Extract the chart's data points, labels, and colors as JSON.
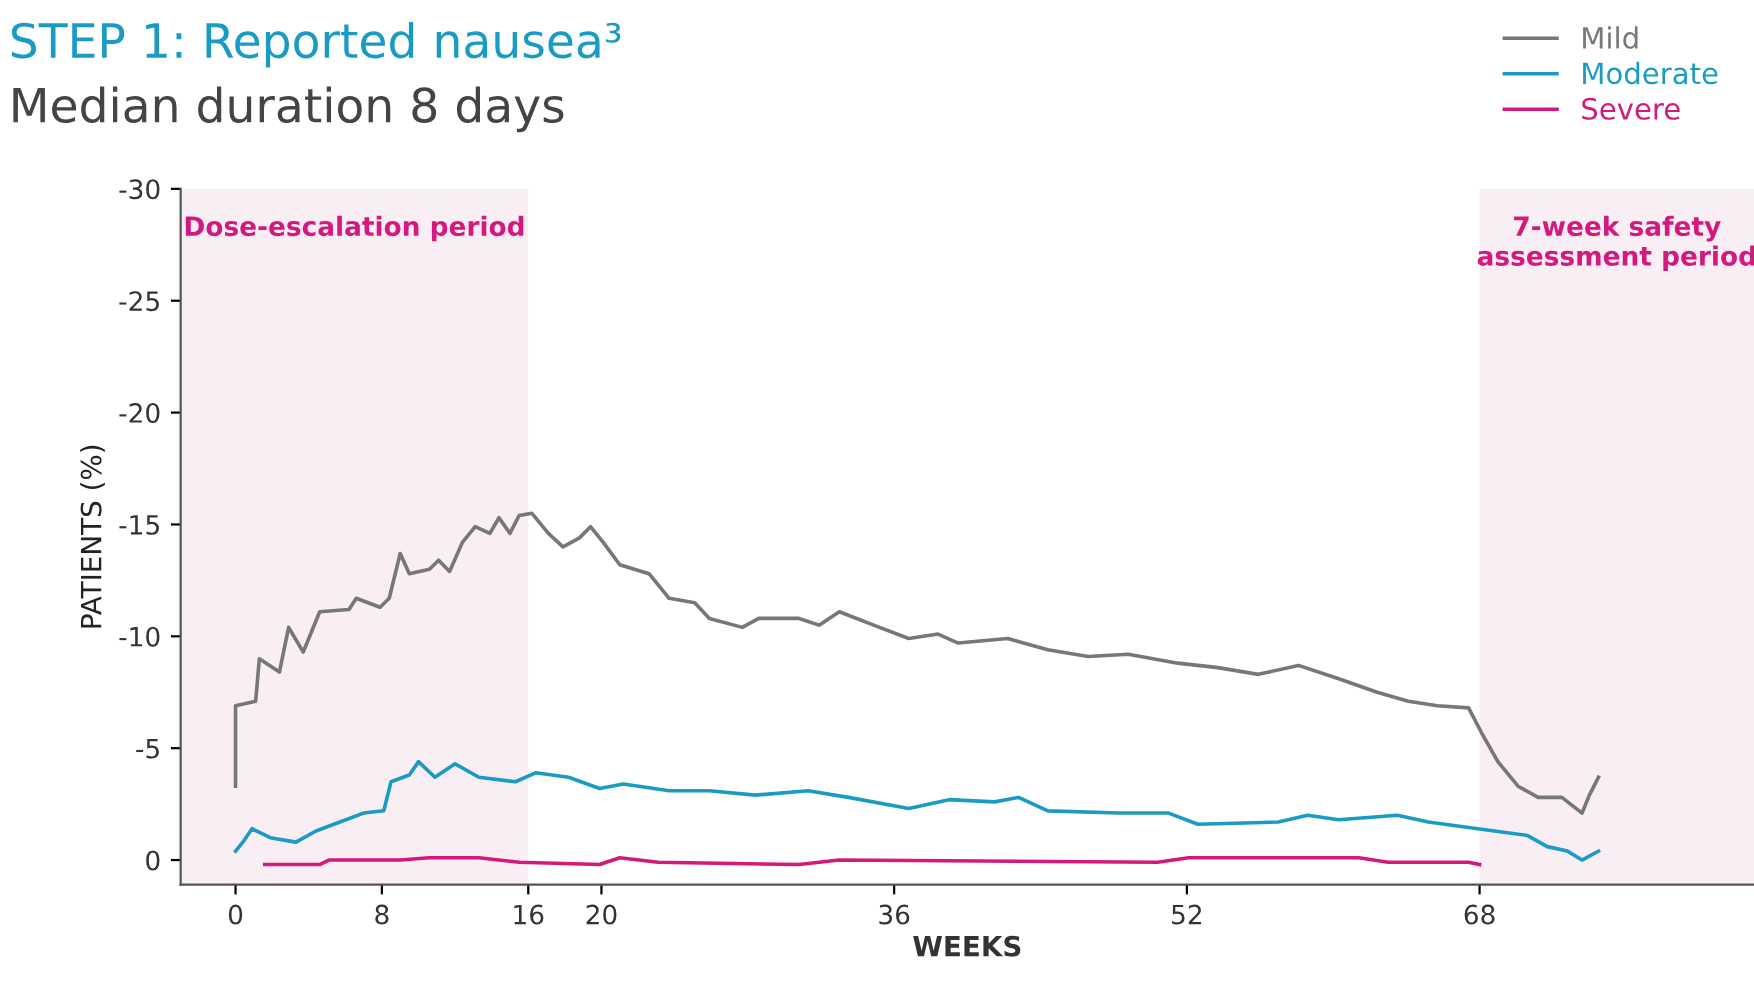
{
  "chart_data": {
    "type": "line",
    "title": "STEP 1: Reported nausea³",
    "subtitle": "Median duration 8 days",
    "xlabel": "WEEKS",
    "ylabel": "PATIENTS (%)",
    "xlim": [
      -3,
      83
    ],
    "xticks": [
      0,
      8,
      16,
      20,
      36,
      52,
      68
    ],
    "ylim": [
      1.1,
      -30
    ],
    "yticks": [
      0,
      -5,
      -10,
      -15,
      -20,
      -25,
      -30
    ],
    "grid": false,
    "legend": "top right",
    "line_style": "solid",
    "marker": "none",
    "bands": [
      {
        "axis": "x",
        "from": -3,
        "to": 16,
        "label": "Dose-escalation period",
        "color": "#f8eef4"
      },
      {
        "axis": "x",
        "from": 68,
        "to": 83,
        "label": "7-week safety\nassessment period",
        "color": "#f8eef4"
      }
    ],
    "series": [
      {
        "name": "Mild",
        "color": "#777777",
        "x": [
          0,
          0,
          1.1,
          1.3,
          2.4,
          2.9,
          3.7,
          4.6,
          6.2,
          6.6,
          7.9,
          8.4,
          9.0,
          9.5,
          10.6,
          11.1,
          11.7,
          12.4,
          13.1,
          13.9,
          14.4,
          15.0,
          15.5,
          16.2,
          17.1,
          17.9,
          18.8,
          19.4,
          20.1,
          21,
          22.6,
          23.7,
          25.1,
          25.9,
          27.7,
          28.6,
          30.8,
          31.9,
          33,
          35.2,
          36.8,
          38.4,
          39.5,
          42.2,
          44.4,
          46.6,
          48.8,
          51.5,
          53.7,
          55.9,
          58.1,
          60.3,
          62.4,
          64.1,
          65.7,
          67.4,
          68.1,
          69,
          70.1,
          71.2,
          72.5,
          73.6,
          74,
          74.5
        ],
        "values": [
          -3.3,
          -6.9,
          -7.1,
          -9.0,
          -8.4,
          -10.4,
          -9.3,
          -11.1,
          -11.2,
          -11.7,
          -11.3,
          -11.7,
          -13.7,
          -12.8,
          -13.0,
          -13.4,
          -12.9,
          -14.2,
          -14.9,
          -14.6,
          -15.3,
          -14.6,
          -15.4,
          -15.5,
          -14.6,
          -14.0,
          -14.4,
          -14.9,
          -14.2,
          -13.2,
          -12.8,
          -11.7,
          -11.5,
          -10.8,
          -10.4,
          -10.8,
          -10.8,
          -10.5,
          -11.1,
          -10.4,
          -9.9,
          -10.1,
          -9.7,
          -9.9,
          -9.4,
          -9.1,
          -9.2,
          -8.8,
          -8.6,
          -8.3,
          -8.7,
          -8.1,
          -7.5,
          -7.1,
          -6.9,
          -6.8,
          -5.7,
          -4.4,
          -3.3,
          -2.8,
          -2.8,
          -2.1,
          -2.9,
          -3.7
        ]
      },
      {
        "name": "Moderate",
        "color": "#1a9bc4",
        "x": [
          0,
          0.4,
          0.9,
          1.9,
          3.3,
          4.4,
          5.7,
          7,
          8.1,
          8.5,
          9.5,
          10,
          10.9,
          12,
          13.3,
          15.3,
          16.4,
          18.2,
          19.9,
          21.2,
          23.7,
          25.9,
          28.4,
          31.3,
          33.5,
          36.8,
          39,
          41.5,
          42.8,
          44.4,
          48.3,
          51,
          52.6,
          57,
          58.6,
          60.3,
          63.5,
          65.2,
          67.9,
          70.6,
          71.7,
          72.8,
          73.6,
          74.5
        ],
        "values": [
          -0.4,
          -0.8,
          -1.4,
          -1.0,
          -0.8,
          -1.3,
          -1.7,
          -2.1,
          -2.2,
          -3.5,
          -3.8,
          -4.4,
          -3.7,
          -4.3,
          -3.7,
          -3.5,
          -3.9,
          -3.7,
          -3.2,
          -3.4,
          -3.1,
          -3.1,
          -2.9,
          -3.1,
          -2.8,
          -2.3,
          -2.7,
          -2.6,
          -2.8,
          -2.2,
          -2.1,
          -2.1,
          -1.6,
          -1.7,
          -2.0,
          -1.8,
          -2.0,
          -1.7,
          -1.4,
          -1.1,
          -0.6,
          -0.4,
          0.0,
          -0.4
        ]
      },
      {
        "name": "Severe",
        "color": "#d4197e",
        "x": [
          1.6,
          4.6,
          5.1,
          6.8,
          9,
          10.6,
          13.3,
          15.5,
          19.9,
          21,
          23.1,
          30.8,
          33,
          50.4,
          52.1,
          61.4,
          63,
          67.4,
          68
        ],
        "values": [
          0.2,
          0.2,
          0,
          0,
          0,
          -0.1,
          -0.1,
          0.1,
          0.2,
          -0.1,
          0.1,
          0.2,
          0,
          0.1,
          -0.1,
          -0.1,
          0.1,
          0.1,
          0.2
        ]
      }
    ]
  }
}
